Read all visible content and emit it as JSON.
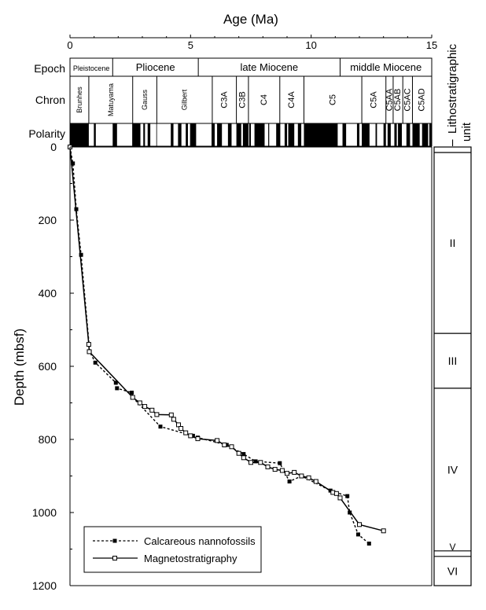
{
  "chart_data": {
    "type": "scatter",
    "title": "",
    "xlabel": "Age (Ma)",
    "ylabel": "Depth  (mbsf)",
    "xlim": [
      0,
      15
    ],
    "ylim": [
      0,
      1200
    ],
    "y_reversed": true,
    "x_ticks": [
      0,
      5,
      10,
      15
    ],
    "x_tick_labels": [
      "0",
      "5",
      "10",
      "15"
    ],
    "y_ticks": [
      0,
      200,
      400,
      600,
      800,
      1000,
      1200
    ],
    "y_tick_labels": [
      "0",
      "200",
      "400",
      "600",
      "800",
      "1000",
      "1200"
    ],
    "grid": false,
    "legend_position": "bottom-left",
    "series": [
      {
        "name": "Calcareous nannofossils",
        "marker": "filled-square",
        "line": "dashed",
        "color": "#000000",
        "x": [
          0.0,
          0.12,
          0.26,
          0.46,
          0.82,
          1.05,
          1.9,
          1.95,
          2.56,
          2.6,
          3.75,
          5.1,
          5.3,
          6.5,
          7.2,
          7.7,
          8.7,
          9.1,
          9.6,
          10.8,
          11.5,
          11.6,
          11.95,
          12.4
        ],
        "y": [
          0,
          45,
          170,
          295,
          560,
          590,
          645,
          660,
          672,
          685,
          765,
          790,
          795,
          815,
          840,
          860,
          865,
          915,
          900,
          940,
          955,
          1000,
          1060,
          1085
        ]
      },
      {
        "name": "Magnetostratigraphy",
        "marker": "open-square",
        "line": "solid",
        "color": "#000000",
        "x": [
          0.0,
          0.78,
          0.8,
          2.6,
          2.9,
          3.1,
          3.4,
          3.6,
          4.2,
          4.3,
          4.5,
          4.6,
          4.8,
          5.0,
          5.3,
          6.1,
          6.4,
          6.7,
          7.0,
          7.2,
          7.5,
          7.9,
          8.2,
          8.5,
          8.8,
          9.0,
          9.3,
          9.6,
          9.9,
          10.2,
          10.9,
          11.05,
          11.2,
          12.0,
          13.0
        ],
        "y": [
          0,
          540,
          560,
          685,
          700,
          710,
          720,
          732,
          733,
          745,
          760,
          770,
          782,
          790,
          798,
          803,
          815,
          820,
          838,
          850,
          863,
          863,
          875,
          882,
          885,
          893,
          890,
          900,
          905,
          915,
          945,
          948,
          960,
          1033,
          1050
        ]
      }
    ],
    "epochs": [
      {
        "label": "Pleistocene",
        "start": 0,
        "end": 1.77
      },
      {
        "label": "Pliocene",
        "start": 1.77,
        "end": 5.32
      },
      {
        "label": "late Miocene",
        "start": 5.32,
        "end": 11.2
      },
      {
        "label": "middle Miocene",
        "start": 11.2,
        "end": 15.0
      }
    ],
    "chrons": [
      {
        "label": "Brunhes",
        "start": 0,
        "end": 0.78
      },
      {
        "label": "Matuyama",
        "start": 0.78,
        "end": 2.6
      },
      {
        "label": "Gauss",
        "start": 2.6,
        "end": 3.6
      },
      {
        "label": "Gilbert",
        "start": 3.6,
        "end": 5.9
      },
      {
        "label": "C3A",
        "start": 5.9,
        "end": 6.9
      },
      {
        "label": "C3B",
        "start": 6.9,
        "end": 7.4
      },
      {
        "label": "C4",
        "start": 7.4,
        "end": 8.7
      },
      {
        "label": "C4A",
        "start": 8.7,
        "end": 9.7
      },
      {
        "label": "C5",
        "start": 9.7,
        "end": 12.1
      },
      {
        "label": "C5A",
        "start": 12.1,
        "end": 13.1
      },
      {
        "label": "C5AA",
        "start": 13.1,
        "end": 13.4
      },
      {
        "label": "C5AB",
        "start": 13.4,
        "end": 13.8
      },
      {
        "label": "C5AC",
        "start": 13.8,
        "end": 14.2
      },
      {
        "label": "C5AD",
        "start": 14.2,
        "end": 15.0
      }
    ],
    "polarity_normal": [
      [
        0,
        0.78
      ],
      [
        0.99,
        1.07
      ],
      [
        1.77,
        1.95
      ],
      [
        2.58,
        2.92
      ],
      [
        3.04,
        3.11
      ],
      [
        3.22,
        3.33
      ],
      [
        3.58,
        3.6
      ],
      [
        4.18,
        4.29
      ],
      [
        4.48,
        4.62
      ],
      [
        4.8,
        4.89
      ],
      [
        4.98,
        5.23
      ],
      [
        5.87,
        6.0
      ],
      [
        6.1,
        6.3
      ],
      [
        6.55,
        6.7
      ],
      [
        6.9,
        7.1
      ],
      [
        7.17,
        7.4
      ],
      [
        7.43,
        7.5
      ],
      [
        7.65,
        8.07
      ],
      [
        8.22,
        8.26
      ],
      [
        8.55,
        8.72
      ],
      [
        8.9,
        9.0
      ],
      [
        9.05,
        9.3
      ],
      [
        9.45,
        9.59
      ],
      [
        9.7,
        11.1
      ],
      [
        11.3,
        11.45
      ],
      [
        11.9,
        12.0
      ],
      [
        12.1,
        12.42
      ],
      [
        12.67,
        12.73
      ],
      [
        13.0,
        13.1
      ],
      [
        13.17,
        13.3
      ],
      [
        13.45,
        13.55
      ],
      [
        13.6,
        13.76
      ],
      [
        13.95,
        14.1
      ],
      [
        14.2,
        14.5
      ],
      [
        14.6,
        14.85
      ],
      [
        14.9,
        15.0
      ]
    ],
    "band_labels": {
      "epoch": "Epoch",
      "chron": "Chron",
      "polarity": "Polarity"
    },
    "litho_title": [
      "Lithostratigraphic",
      "unit"
    ],
    "litho_units": [
      {
        "label": "I",
        "top": 0,
        "bottom": 15
      },
      {
        "label": "II",
        "top": 15,
        "bottom": 510
      },
      {
        "label": "III",
        "top": 510,
        "bottom": 660
      },
      {
        "label": "IV",
        "top": 660,
        "bottom": 1105
      },
      {
        "label": "V",
        "top": 1105,
        "bottom": 1120
      },
      {
        "label": "VI",
        "top": 1120,
        "bottom": 1200
      }
    ]
  }
}
